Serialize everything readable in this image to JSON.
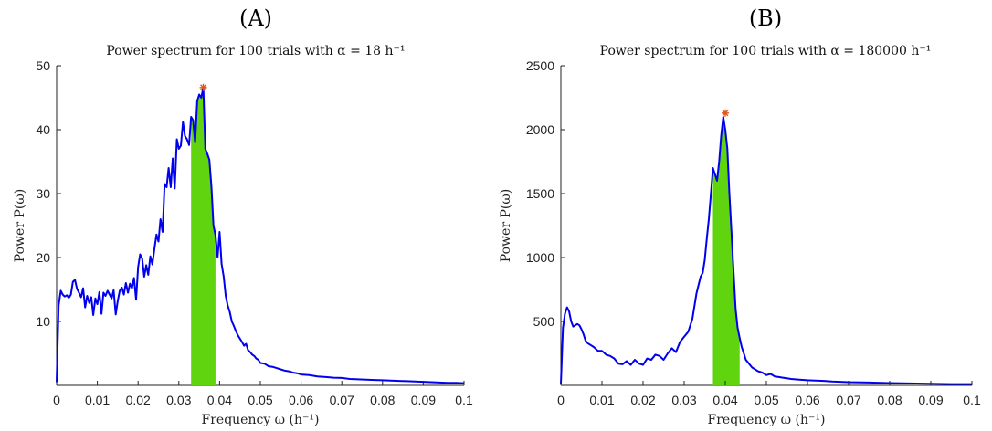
{
  "chart_data": [
    {
      "type": "line",
      "panel_label": "(A)",
      "title": "Power spectrum for 100 trials with α = 18 h⁻¹",
      "xlabel": "Frequency ω (h⁻¹)",
      "ylabel": "Power P(ω)",
      "xlim": [
        0,
        0.1
      ],
      "ylim": [
        0,
        50
      ],
      "xticks": [
        0,
        0.01,
        0.02,
        0.03,
        0.04,
        0.05,
        0.06,
        0.07,
        0.08,
        0.09,
        0.1
      ],
      "xtick_labels": [
        "0",
        "0.01",
        "0.02",
        "0.03",
        "0.04",
        "0.05",
        "0.06",
        "0.07",
        "0.08",
        "0.09",
        "0.1"
      ],
      "yticks": [
        10,
        20,
        30,
        40,
        50
      ],
      "ytick_labels": [
        "10",
        "20",
        "30",
        "40",
        "50"
      ],
      "grid": false,
      "line_color": "#0000ee",
      "band_color": "#5fd40f",
      "peak_color": "#e2561b",
      "band": [
        0.033,
        0.039
      ],
      "peak": {
        "x": 0.036,
        "y": 46.6
      },
      "series": [
        {
          "x": [
            0,
            0.0005,
            0.001,
            0.0015,
            0.002,
            0.0025,
            0.003,
            0.0035,
            0.004,
            0.0045,
            0.005,
            0.0055,
            0.006,
            0.0065,
            0.007,
            0.0075,
            0.008,
            0.0085,
            0.009,
            0.0095,
            0.01,
            0.0105,
            0.011,
            0.0115,
            0.012,
            0.0125,
            0.013,
            0.0135,
            0.014,
            0.0145,
            0.015,
            0.0155,
            0.016,
            0.0165,
            0.017,
            0.0175,
            0.018,
            0.0185,
            0.019,
            0.0195,
            0.02,
            0.0205,
            0.021,
            0.0215,
            0.022,
            0.0225,
            0.023,
            0.0235,
            0.024,
            0.0245,
            0.025,
            0.0255,
            0.026,
            0.0265,
            0.027,
            0.0275,
            0.028,
            0.0285,
            0.029,
            0.0295,
            0.03,
            0.0305,
            0.031,
            0.0315,
            0.032,
            0.0325,
            0.033,
            0.0335,
            0.034,
            0.0345,
            0.035,
            0.0355,
            0.036,
            0.0365,
            0.037,
            0.0375,
            0.038,
            0.0385,
            0.039,
            0.0395,
            0.04,
            0.0405,
            0.041,
            0.0415,
            0.042,
            0.0425,
            0.043,
            0.0435,
            0.044,
            0.0445,
            0.045,
            0.0455,
            0.046,
            0.0465,
            0.047,
            0.0475,
            0.048,
            0.0485,
            0.049,
            0.0495,
            0.05,
            0.051,
            0.052,
            0.053,
            0.054,
            0.055,
            0.056,
            0.057,
            0.058,
            0.059,
            0.06,
            0.062,
            0.064,
            0.066,
            0.068,
            0.07,
            0.072,
            0.074,
            0.076,
            0.078,
            0.08,
            0.082,
            0.084,
            0.086,
            0.088,
            0.09,
            0.092,
            0.094,
            0.096,
            0.098,
            0.1
          ],
          "y": [
            0.5,
            12.5,
            14.8,
            14.2,
            13.9,
            14.1,
            13.7,
            14.2,
            16.2,
            16.5,
            15.1,
            14.5,
            13.8,
            15.2,
            12.2,
            14.0,
            12.9,
            13.8,
            11.0,
            13.6,
            12.7,
            14.6,
            11.2,
            14.5,
            14.0,
            14.8,
            14.2,
            13.6,
            14.9,
            11.1,
            13.2,
            14.8,
            15.3,
            14.2,
            16.0,
            14.5,
            15.9,
            15.2,
            16.8,
            13.4,
            18.5,
            20.5,
            19.8,
            17.0,
            18.8,
            17.3,
            20.2,
            18.9,
            21.3,
            23.6,
            22.5,
            26.0,
            24.0,
            31.5,
            31.0,
            34.0,
            31.0,
            35.5,
            30.8,
            38.5,
            37.0,
            37.5,
            41.2,
            39.0,
            38.5,
            37.6,
            42.0,
            41.5,
            38.0,
            44.5,
            45.5,
            45.0,
            46.6,
            37.0,
            36.2,
            35.3,
            31.0,
            25.0,
            23.5,
            20.0,
            24.0,
            19.0,
            17.0,
            14.0,
            12.5,
            11.5,
            10.0,
            9.3,
            8.5,
            7.8,
            7.3,
            6.8,
            6.2,
            6.5,
            5.5,
            5.2,
            4.8,
            4.6,
            4.2,
            4.0,
            3.5,
            3.4,
            3.0,
            2.9,
            2.7,
            2.5,
            2.3,
            2.2,
            2.0,
            1.9,
            1.7,
            1.6,
            1.4,
            1.3,
            1.2,
            1.15,
            1.0,
            0.95,
            0.9,
            0.85,
            0.8,
            0.75,
            0.7,
            0.65,
            0.6,
            0.55,
            0.5,
            0.45,
            0.4,
            0.38,
            0.35
          ]
        }
      ]
    },
    {
      "type": "line",
      "panel_label": "(B)",
      "title": "Power spectrum for 100 trials with α = 180000 h⁻¹",
      "xlabel": "Frequency ω (h⁻¹)",
      "ylabel": "Power P(ω)",
      "xlim": [
        0,
        0.1
      ],
      "ylim": [
        0,
        2500
      ],
      "xticks": [
        0,
        0.01,
        0.02,
        0.03,
        0.04,
        0.05,
        0.06,
        0.07,
        0.08,
        0.09,
        0.1
      ],
      "xtick_labels": [
        "0",
        "0.01",
        "0.02",
        "0.03",
        "0.04",
        "0.05",
        "0.06",
        "0.07",
        "0.08",
        "0.09",
        "0.1"
      ],
      "yticks": [
        500,
        1000,
        1500,
        2000,
        2500
      ],
      "ytick_labels": [
        "500",
        "1000",
        "1500",
        "2000",
        "2500"
      ],
      "grid": false,
      "line_color": "#0000ee",
      "band_color": "#5fd40f",
      "peak_color": "#e2561b",
      "band": [
        0.037,
        0.0435
      ],
      "peak": {
        "x": 0.04,
        "y": 2130
      },
      "series": [
        {
          "x": [
            0,
            0.0005,
            0.001,
            0.0015,
            0.002,
            0.0025,
            0.003,
            0.0035,
            0.004,
            0.0045,
            0.005,
            0.0055,
            0.006,
            0.0065,
            0.007,
            0.008,
            0.009,
            0.01,
            0.011,
            0.012,
            0.013,
            0.014,
            0.015,
            0.016,
            0.017,
            0.018,
            0.019,
            0.02,
            0.021,
            0.022,
            0.023,
            0.024,
            0.025,
            0.026,
            0.027,
            0.028,
            0.029,
            0.03,
            0.031,
            0.032,
            0.033,
            0.034,
            0.0345,
            0.035,
            0.0355,
            0.036,
            0.0365,
            0.037,
            0.0375,
            0.038,
            0.0385,
            0.039,
            0.0395,
            0.04,
            0.0405,
            0.041,
            0.0415,
            0.042,
            0.0425,
            0.043,
            0.0435,
            0.044,
            0.0445,
            0.045,
            0.0455,
            0.046,
            0.0465,
            0.047,
            0.048,
            0.049,
            0.05,
            0.051,
            0.052,
            0.053,
            0.054,
            0.055,
            0.056,
            0.058,
            0.06,
            0.062,
            0.064,
            0.066,
            0.068,
            0.07,
            0.075,
            0.08,
            0.085,
            0.09,
            0.095,
            0.1
          ],
          "y": [
            10,
            450,
            560,
            610,
            580,
            500,
            460,
            470,
            480,
            470,
            440,
            400,
            350,
            330,
            320,
            300,
            270,
            270,
            240,
            230,
            210,
            170,
            165,
            190,
            160,
            200,
            170,
            160,
            210,
            200,
            240,
            230,
            200,
            250,
            290,
            260,
            340,
            380,
            420,
            520,
            720,
            850,
            880,
            980,
            1150,
            1300,
            1500,
            1700,
            1650,
            1600,
            1750,
            1950,
            2100,
            2000,
            1850,
            1500,
            1200,
            900,
            600,
            450,
            370,
            300,
            250,
            200,
            180,
            160,
            140,
            130,
            110,
            100,
            80,
            90,
            70,
            65,
            60,
            55,
            50,
            45,
            40,
            38,
            35,
            30,
            28,
            25,
            22,
            18,
            15,
            12,
            10,
            10
          ]
        }
      ]
    }
  ]
}
